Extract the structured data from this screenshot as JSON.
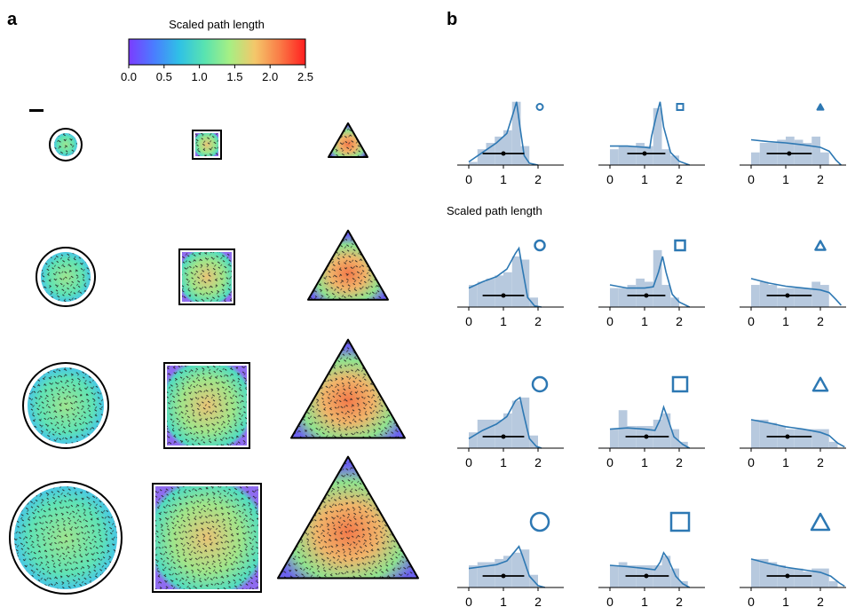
{
  "panels": {
    "a_label": "a",
    "b_label": "b"
  },
  "colorbar": {
    "title": "Scaled path length",
    "ticks": [
      "0.0",
      "0.5",
      "1.0",
      "1.5",
      "2.0",
      "2.5"
    ],
    "range": [
      0,
      2.5
    ],
    "colormap": "rainbow",
    "stops": [
      "#7b3cff",
      "#4a7dff",
      "#2fc1e6",
      "#59e3b0",
      "#a6ef84",
      "#f4c76a",
      "#fa7a46",
      "#ff1f1f"
    ]
  },
  "panel_a": {
    "shapes": [
      "circle",
      "square",
      "triangle"
    ],
    "sizes": [
      1,
      2,
      3,
      4
    ]
  },
  "chart_data": {
    "type": "area",
    "xlabel": "Scaled path length",
    "xticks": [
      "0",
      "1",
      "2"
    ],
    "xlim": [
      -0.4,
      2.95
    ],
    "hist_color": "#b7c9de",
    "kde_color": "#2d78b3",
    "bins": [
      0,
      0.25,
      0.5,
      0.75,
      1.0,
      1.25,
      1.5,
      1.75,
      2.0,
      2.25,
      2.5
    ],
    "panels": [
      {
        "shape": "circle",
        "size": 1,
        "hist": [
          0.05,
          0.25,
          0.35,
          0.45,
          0.55,
          1.0,
          0.3,
          0,
          0,
          0
        ],
        "kde": [
          [
            0,
            0.05
          ],
          [
            0.4,
            0.2
          ],
          [
            0.8,
            0.35
          ],
          [
            1.1,
            0.5
          ],
          [
            1.3,
            0.85
          ],
          [
            1.38,
            1.0
          ],
          [
            1.48,
            0.6
          ],
          [
            1.6,
            0.15
          ],
          [
            1.75,
            0.03
          ],
          [
            2.0,
            0
          ]
        ],
        "median": 1.0,
        "range": [
          0.4,
          1.6
        ]
      },
      {
        "shape": "square",
        "size": 1,
        "hist": [
          0.25,
          0.3,
          0.3,
          0.35,
          0.3,
          0.9,
          0.25,
          0.15,
          0,
          0
        ],
        "kde": [
          [
            0,
            0.3
          ],
          [
            0.5,
            0.3
          ],
          [
            1.0,
            0.28
          ],
          [
            1.15,
            0.27
          ],
          [
            1.2,
            0.45
          ],
          [
            1.35,
            0.8
          ],
          [
            1.45,
            1.0
          ],
          [
            1.55,
            0.6
          ],
          [
            1.75,
            0.2
          ],
          [
            2.0,
            0.06
          ],
          [
            2.3,
            0
          ]
        ],
        "median": 1.0,
        "range": [
          0.5,
          1.6
        ]
      },
      {
        "shape": "triangle",
        "size": 1,
        "hist": [
          0.2,
          0.35,
          0.35,
          0.4,
          0.45,
          0.4,
          0.35,
          0.45,
          0.2,
          0
        ],
        "kde": [
          [
            0,
            0.4
          ],
          [
            0.5,
            0.37
          ],
          [
            1.0,
            0.35
          ],
          [
            1.5,
            0.32
          ],
          [
            2.0,
            0.28
          ],
          [
            2.25,
            0.22
          ],
          [
            2.45,
            0.08
          ],
          [
            2.6,
            0
          ]
        ],
        "median": 1.1,
        "range": [
          0.45,
          1.75
        ]
      },
      {
        "shape": "circle",
        "size": 2,
        "hist": [
          0.35,
          0.4,
          0.45,
          0.5,
          0.55,
          0.8,
          0.75,
          0.15,
          0,
          0
        ],
        "kde": [
          [
            0,
            0.3
          ],
          [
            0.4,
            0.4
          ],
          [
            0.8,
            0.48
          ],
          [
            1.1,
            0.6
          ],
          [
            1.35,
            0.85
          ],
          [
            1.45,
            0.93
          ],
          [
            1.55,
            0.6
          ],
          [
            1.7,
            0.15
          ],
          [
            1.9,
            0.02
          ],
          [
            2.1,
            0
          ]
        ],
        "median": 1.0,
        "range": [
          0.4,
          1.6
        ]
      },
      {
        "shape": "square",
        "size": 2,
        "hist": [
          0.3,
          0.3,
          0.35,
          0.45,
          0.4,
          0.9,
          0.35,
          0.15,
          0,
          0
        ],
        "kde": [
          [
            0,
            0.35
          ],
          [
            0.5,
            0.3
          ],
          [
            1.0,
            0.3
          ],
          [
            1.25,
            0.32
          ],
          [
            1.4,
            0.55
          ],
          [
            1.52,
            0.8
          ],
          [
            1.62,
            0.55
          ],
          [
            1.8,
            0.2
          ],
          [
            2.0,
            0.08
          ],
          [
            2.3,
            0
          ]
        ],
        "median": 1.05,
        "range": [
          0.5,
          1.6
        ]
      },
      {
        "shape": "triangle",
        "size": 2,
        "hist": [
          0.35,
          0.4,
          0.35,
          0.3,
          0.3,
          0.3,
          0.3,
          0.4,
          0.35,
          0
        ],
        "kde": [
          [
            0,
            0.45
          ],
          [
            0.5,
            0.38
          ],
          [
            1.0,
            0.33
          ],
          [
            1.5,
            0.3
          ],
          [
            2.0,
            0.27
          ],
          [
            2.25,
            0.23
          ],
          [
            2.45,
            0.12
          ],
          [
            2.6,
            0.03
          ]
        ],
        "median": 1.05,
        "range": [
          0.45,
          1.75
        ]
      },
      {
        "shape": "circle",
        "size": 3,
        "hist": [
          0.25,
          0.45,
          0.45,
          0.45,
          0.55,
          0.75,
          0.8,
          0.2,
          0,
          0
        ],
        "kde": [
          [
            0,
            0.15
          ],
          [
            0.4,
            0.28
          ],
          [
            0.8,
            0.38
          ],
          [
            1.1,
            0.5
          ],
          [
            1.35,
            0.75
          ],
          [
            1.48,
            0.8
          ],
          [
            1.58,
            0.55
          ],
          [
            1.75,
            0.15
          ],
          [
            1.95,
            0.03
          ],
          [
            2.1,
            0
          ]
        ],
        "median": 1.0,
        "range": [
          0.4,
          1.6
        ]
      },
      {
        "shape": "square",
        "size": 3,
        "hist": [
          0.3,
          0.6,
          0.35,
          0.35,
          0.35,
          0.45,
          0.55,
          0.3,
          0.1,
          0
        ],
        "kde": [
          [
            0,
            0.3
          ],
          [
            0.5,
            0.32
          ],
          [
            1.0,
            0.3
          ],
          [
            1.3,
            0.28
          ],
          [
            1.45,
            0.45
          ],
          [
            1.55,
            0.65
          ],
          [
            1.65,
            0.5
          ],
          [
            1.85,
            0.18
          ],
          [
            2.1,
            0.06
          ],
          [
            2.3,
            0
          ]
        ],
        "median": 1.05,
        "range": [
          0.45,
          1.7
        ]
      },
      {
        "shape": "triangle",
        "size": 3,
        "hist": [
          0.45,
          0.45,
          0.4,
          0.35,
          0.3,
          0.3,
          0.3,
          0.3,
          0.3,
          0.1
        ],
        "kde": [
          [
            0,
            0.45
          ],
          [
            0.5,
            0.4
          ],
          [
            1.0,
            0.34
          ],
          [
            1.5,
            0.3
          ],
          [
            2.0,
            0.25
          ],
          [
            2.25,
            0.2
          ],
          [
            2.5,
            0.08
          ],
          [
            2.7,
            0.02
          ]
        ],
        "median": 1.05,
        "range": [
          0.45,
          1.75
        ]
      },
      {
        "shape": "circle",
        "size": 4,
        "hist": [
          0.35,
          0.4,
          0.4,
          0.45,
          0.5,
          0.55,
          0.6,
          0.2,
          0,
          0
        ],
        "kde": [
          [
            0,
            0.3
          ],
          [
            0.4,
            0.33
          ],
          [
            0.8,
            0.36
          ],
          [
            1.1,
            0.42
          ],
          [
            1.3,
            0.55
          ],
          [
            1.45,
            0.65
          ],
          [
            1.55,
            0.5
          ],
          [
            1.75,
            0.18
          ],
          [
            2.0,
            0.03
          ],
          [
            2.2,
            0
          ]
        ],
        "median": 1.0,
        "range": [
          0.4,
          1.6
        ]
      },
      {
        "shape": "square",
        "size": 4,
        "hist": [
          0.35,
          0.4,
          0.35,
          0.35,
          0.35,
          0.35,
          0.5,
          0.3,
          0.1,
          0
        ],
        "kde": [
          [
            0,
            0.35
          ],
          [
            0.5,
            0.33
          ],
          [
            1.0,
            0.3
          ],
          [
            1.3,
            0.28
          ],
          [
            1.45,
            0.4
          ],
          [
            1.55,
            0.55
          ],
          [
            1.68,
            0.45
          ],
          [
            1.9,
            0.18
          ],
          [
            2.1,
            0.06
          ],
          [
            2.3,
            0
          ]
        ],
        "median": 1.05,
        "range": [
          0.45,
          1.7
        ]
      },
      {
        "shape": "triangle",
        "size": 4,
        "hist": [
          0.45,
          0.45,
          0.4,
          0.35,
          0.3,
          0.3,
          0.25,
          0.3,
          0.3,
          0.1
        ],
        "kde": [
          [
            0,
            0.45
          ],
          [
            0.5,
            0.38
          ],
          [
            1.0,
            0.32
          ],
          [
            1.5,
            0.28
          ],
          [
            2.0,
            0.24
          ],
          [
            2.3,
            0.18
          ],
          [
            2.55,
            0.07
          ],
          [
            2.7,
            0.02
          ]
        ],
        "median": 1.05,
        "range": [
          0.45,
          1.75
        ]
      }
    ]
  }
}
